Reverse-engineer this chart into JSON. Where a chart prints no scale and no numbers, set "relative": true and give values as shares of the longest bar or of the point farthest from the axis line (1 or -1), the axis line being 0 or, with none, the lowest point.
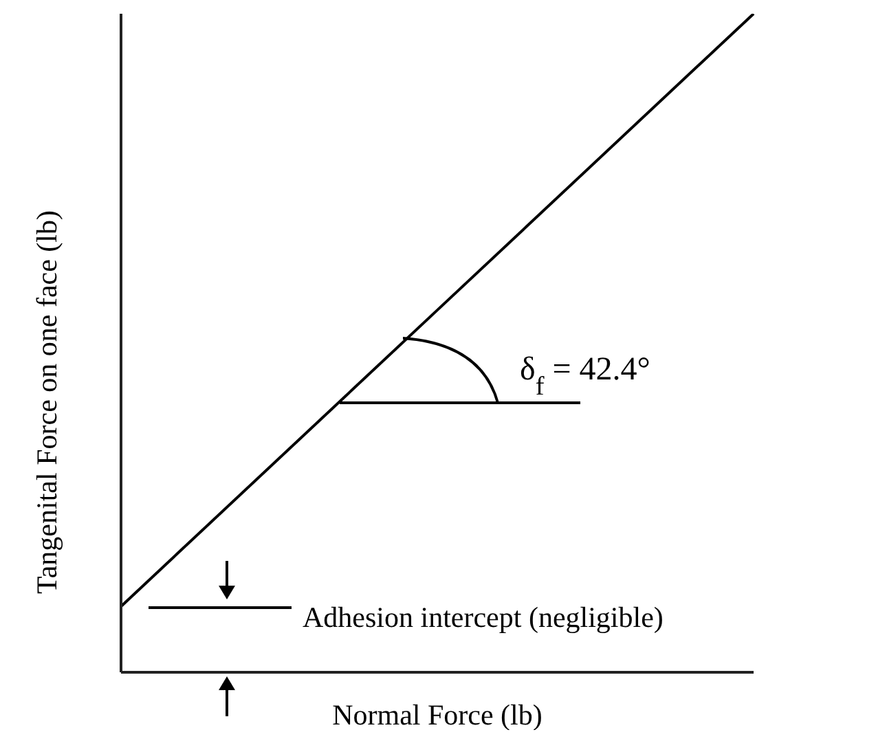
{
  "chart_data": {
    "type": "line",
    "relative": true,
    "xlabel": "Normal Force (lb)",
    "ylabel": "Tangenital Force on one face (lb)",
    "categories": [
      null,
      null,
      null
    ],
    "series": [
      {
        "color": "#000000",
        "values": [
          0.1,
          0.55,
          1
        ]
      }
    ],
    "annotations": [
      "δ$_{f}$ = 42.4°",
      "Adhesion intercept (negligible)"
    ]
  }
}
